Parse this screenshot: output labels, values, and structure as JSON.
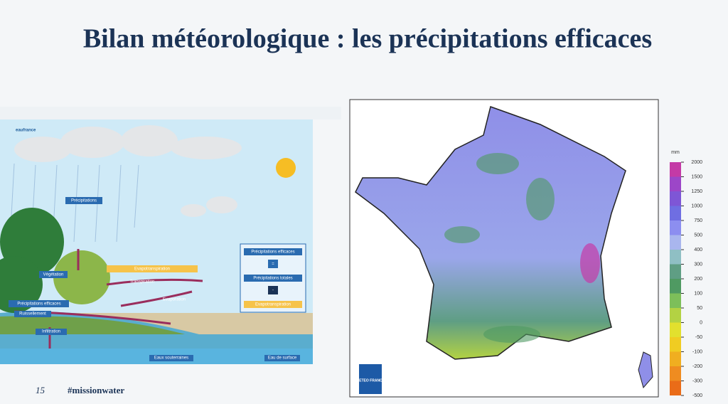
{
  "header": {
    "title": "Bilan météorologique : les précipitations efficaces"
  },
  "diagram": {
    "logo": "eaufrance",
    "labels": {
      "precipitations": "Précipitations",
      "vegetation": "Végétation",
      "evapotranspiration": "Evapotranspiration",
      "transpiration": "Transpiration",
      "evaporation": "Evaporation",
      "precip_efficaces": "Précipitations efficaces",
      "ruissellement": "Ruissellement",
      "infiltration": "Infiltration",
      "eaux_souterraines": "Eaux souterraines",
      "eau_surface": "Eau de surface"
    },
    "formula": {
      "result": "Précipitations efficaces",
      "equals": "=",
      "total": "Précipitations totales",
      "minus": "-",
      "minus_term": "Evapotranspiration"
    }
  },
  "map": {
    "logo": "METEO FRANCE",
    "legend": {
      "unit": "mm",
      "ticks": [
        2000,
        1500,
        1250,
        1000,
        750,
        500,
        400,
        300,
        200,
        100,
        50,
        0,
        -50,
        -100,
        -200,
        -300,
        -500
      ],
      "colors": [
        "#c43aa6",
        "#9c46c8",
        "#7e56d6",
        "#6f6ee2",
        "#8c8ef0",
        "#a9b6ee",
        "#8fbfc4",
        "#5f9e84",
        "#4f9a62",
        "#7dbf5a",
        "#b3d243",
        "#e2e02e",
        "#f0cc22",
        "#f0ae20",
        "#ef8c20",
        "#ea6c18"
      ]
    }
  },
  "footer": {
    "page": "15",
    "hashtag": "#missionwater"
  }
}
